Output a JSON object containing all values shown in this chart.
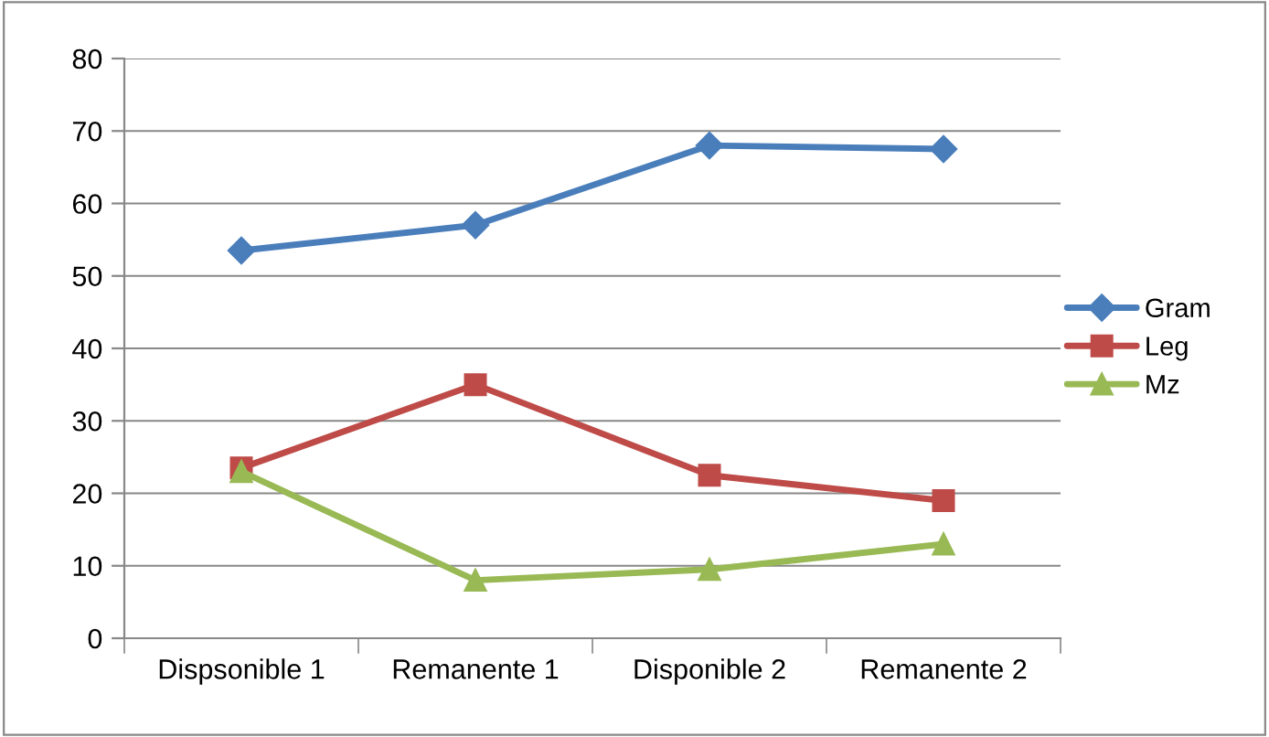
{
  "chart_data": {
    "type": "line",
    "categories": [
      "Dispsonible 1",
      "Remanente 1",
      "Disponible 2",
      "Remanente 2"
    ],
    "series": [
      {
        "name": "Gram",
        "color": "#4a7ebb",
        "values": [
          53.5,
          57,
          68,
          67.5
        ],
        "marker": "diamond"
      },
      {
        "name": "Leg",
        "color": "#be4b48",
        "values": [
          23.5,
          35,
          22.5,
          19
        ],
        "marker": "square"
      },
      {
        "name": "Mz",
        "color": "#98b954",
        "values": [
          23,
          8,
          9.5,
          13
        ],
        "marker": "triangle"
      }
    ],
    "ylim": [
      0,
      80
    ],
    "yticks": [
      0,
      10,
      20,
      30,
      40,
      50,
      60,
      70,
      80
    ],
    "grid": "y",
    "legend": "right",
    "line_style": "solid"
  }
}
